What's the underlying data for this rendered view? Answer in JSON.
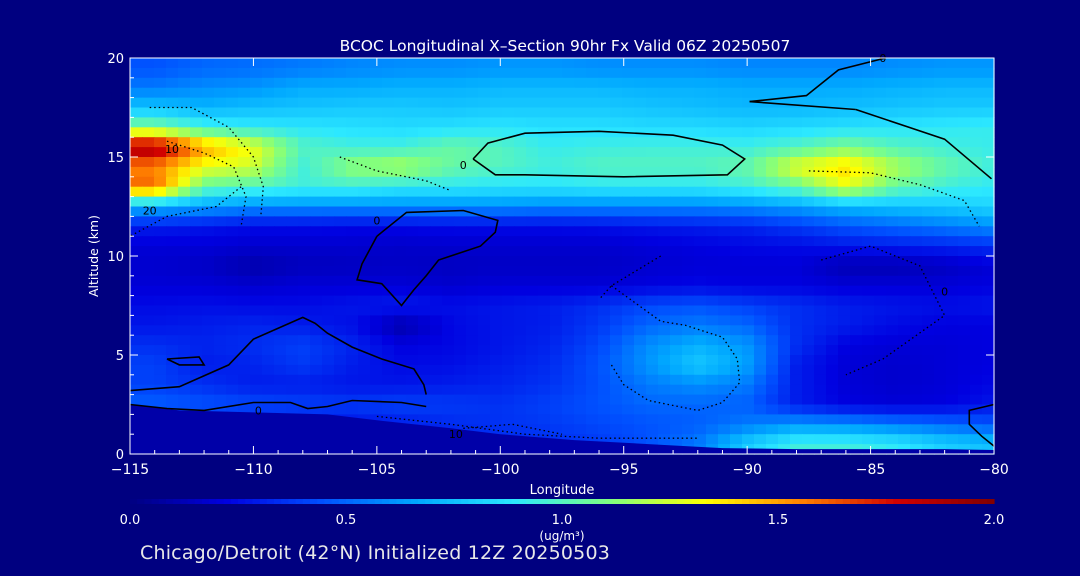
{
  "chart_data": {
    "type": "heatmap",
    "title": "BCOC Longitudinal X–Section 90hr  Fx Valid 06Z 20250507",
    "xlabel": "Longitude",
    "ylabel": "Altitude (km)",
    "xlim": [
      -115,
      -80
    ],
    "ylim": [
      0,
      20
    ],
    "x_ticks": [
      -115,
      -110,
      -105,
      -100,
      -95,
      -90,
      -85,
      -80
    ],
    "x_tick_labels": [
      "−115",
      "−110",
      "−105",
      "−100",
      "−95",
      "−90",
      "−85",
      "−80"
    ],
    "y_ticks": [
      0,
      5,
      10,
      15,
      20
    ],
    "y_tick_labels": [
      "0",
      "5",
      "10",
      "15",
      "20"
    ],
    "colorbar": {
      "min": 0.0,
      "max": 2.0,
      "tick_values": [
        0.0,
        0.5,
        1.0,
        1.5,
        2.0
      ],
      "tick_labels": [
        "0.0",
        "0.5",
        "1.0",
        "1.5",
        "2.0"
      ],
      "unit_label": "(ug/m³)"
    },
    "colormap": [
      "#000080",
      "#0000e0",
      "#0050ff",
      "#00a8ff",
      "#2ce8ff",
      "#80ff80",
      "#ffff00",
      "#ff8000",
      "#d00000",
      "#800000"
    ],
    "rows_altitude_km": [
      19.5,
      18.5,
      17.5,
      16.5,
      15.5,
      14.5,
      13.5,
      12.5,
      11.5,
      10.5,
      9.5,
      8.5,
      7.5,
      6.5,
      5.5,
      4.5,
      3.5,
      2.5,
      1.5,
      0.5
    ],
    "cols_longitude": [
      -114,
      -112,
      -110,
      -108,
      -106,
      -104,
      -102,
      -100,
      -98,
      -96,
      -94,
      -92,
      -90,
      -88,
      -86,
      -84,
      -82,
      -80
    ],
    "values": [
      [
        0.45,
        0.5,
        0.52,
        0.55,
        0.58,
        0.6,
        0.6,
        0.62,
        0.62,
        0.6,
        0.6,
        0.6,
        0.58,
        0.58,
        0.58,
        0.6,
        0.62,
        0.62
      ],
      [
        0.55,
        0.6,
        0.62,
        0.68,
        0.68,
        0.7,
        0.7,
        0.72,
        0.72,
        0.72,
        0.7,
        0.7,
        0.68,
        0.68,
        0.68,
        0.7,
        0.72,
        0.72
      ],
      [
        0.75,
        0.7,
        0.74,
        0.76,
        0.78,
        0.78,
        0.76,
        0.78,
        0.78,
        0.78,
        0.76,
        0.74,
        0.72,
        0.72,
        0.74,
        0.76,
        0.78,
        0.78
      ],
      [
        1.1,
        0.95,
        0.9,
        0.88,
        0.86,
        0.84,
        0.86,
        0.88,
        0.86,
        0.86,
        0.84,
        0.84,
        0.82,
        0.84,
        0.86,
        0.88,
        0.9,
        0.92
      ],
      [
        1.9,
        1.5,
        1.3,
        1.0,
        0.95,
        0.95,
        1.05,
        1.0,
        0.92,
        0.94,
        0.95,
        0.95,
        0.94,
        1.0,
        1.1,
        1.0,
        0.95,
        0.92
      ],
      [
        1.55,
        1.3,
        1.25,
        0.95,
        1.15,
        1.2,
        1.05,
        1.0,
        0.95,
        1.0,
        1.0,
        1.0,
        1.05,
        1.3,
        1.4,
        1.2,
        1.05,
        0.95
      ],
      [
        1.6,
        1.05,
        1.0,
        0.95,
        0.95,
        0.9,
        0.9,
        0.88,
        0.88,
        0.9,
        0.9,
        0.9,
        0.95,
        1.05,
        1.3,
        1.05,
        0.95,
        0.9
      ],
      [
        0.7,
        0.65,
        0.6,
        0.6,
        0.6,
        0.6,
        0.6,
        0.6,
        0.58,
        0.58,
        0.58,
        0.58,
        0.6,
        0.65,
        0.72,
        0.75,
        0.78,
        0.82
      ],
      [
        0.3,
        0.28,
        0.25,
        0.25,
        0.24,
        0.24,
        0.25,
        0.25,
        0.25,
        0.26,
        0.28,
        0.3,
        0.32,
        0.38,
        0.45,
        0.5,
        0.55,
        0.6
      ],
      [
        0.2,
        0.2,
        0.18,
        0.18,
        0.18,
        0.17,
        0.18,
        0.18,
        0.18,
        0.18,
        0.2,
        0.22,
        0.24,
        0.25,
        0.28,
        0.3,
        0.32,
        0.35
      ],
      [
        0.18,
        0.16,
        0.1,
        0.14,
        0.15,
        0.16,
        0.15,
        0.16,
        0.16,
        0.16,
        0.18,
        0.2,
        0.2,
        0.2,
        0.12,
        0.12,
        0.15,
        0.2
      ],
      [
        0.2,
        0.2,
        0.18,
        0.2,
        0.2,
        0.2,
        0.18,
        0.2,
        0.2,
        0.2,
        0.22,
        0.24,
        0.22,
        0.22,
        0.2,
        0.2,
        0.2,
        0.22
      ],
      [
        0.25,
        0.26,
        0.25,
        0.25,
        0.28,
        0.3,
        0.26,
        0.28,
        0.3,
        0.35,
        0.42,
        0.45,
        0.4,
        0.35,
        0.3,
        0.28,
        0.26,
        0.28
      ],
      [
        0.28,
        0.3,
        0.32,
        0.3,
        0.26,
        0.1,
        0.24,
        0.28,
        0.3,
        0.38,
        0.5,
        0.55,
        0.5,
        0.35,
        0.3,
        0.25,
        0.22,
        0.22
      ],
      [
        0.35,
        0.32,
        0.35,
        0.4,
        0.32,
        0.22,
        0.24,
        0.28,
        0.32,
        0.42,
        0.6,
        0.7,
        0.62,
        0.35,
        0.22,
        0.2,
        0.2,
        0.22
      ],
      [
        0.4,
        0.3,
        0.32,
        0.38,
        0.3,
        0.25,
        0.26,
        0.3,
        0.34,
        0.45,
        0.62,
        0.78,
        0.65,
        0.3,
        0.2,
        0.18,
        0.2,
        0.22
      ],
      [
        0.4,
        0.35,
        0.3,
        0.3,
        0.28,
        0.28,
        0.3,
        0.32,
        0.36,
        0.44,
        0.55,
        0.6,
        0.55,
        0.3,
        0.2,
        0.18,
        0.2,
        0.24
      ],
      [
        0.48,
        0.45,
        0.42,
        0.4,
        0.38,
        0.4,
        0.38,
        0.36,
        0.4,
        0.45,
        0.5,
        0.5,
        0.48,
        0.3,
        0.22,
        0.2,
        0.22,
        0.28
      ],
      [
        0.4,
        0.35,
        0.3,
        0.28,
        0.28,
        0.3,
        0.34,
        0.36,
        0.38,
        0.42,
        0.45,
        0.48,
        0.55,
        0.62,
        0.6,
        0.55,
        0.5,
        0.45
      ],
      [
        0.25,
        0.25,
        0.25,
        0.26,
        0.28,
        0.3,
        0.32,
        0.34,
        0.35,
        0.38,
        0.45,
        0.55,
        0.8,
        0.95,
        0.95,
        0.9,
        0.8,
        0.75
      ]
    ],
    "terrain_km": [
      [
        -115,
        2.5
      ],
      [
        -113,
        2.2
      ],
      [
        -110,
        2.1
      ],
      [
        -107,
        2.0
      ],
      [
        -105,
        1.7
      ],
      [
        -102,
        1.3
      ],
      [
        -100,
        1.0
      ],
      [
        -97,
        0.7
      ],
      [
        -94,
        0.5
      ],
      [
        -91,
        0.3
      ],
      [
        -88,
        0.25
      ],
      [
        -85,
        0.25
      ],
      [
        -82,
        0.25
      ],
      [
        -80,
        0.2
      ]
    ],
    "contour_labels": [
      {
        "text": "0",
        "lon": -101.5,
        "alt": 14.6
      },
      {
        "text": "0",
        "lon": -105,
        "alt": 11.8
      },
      {
        "text": "0",
        "lon": -109.8,
        "alt": 2.2
      },
      {
        "text": "0",
        "lon": -84.5,
        "alt": 20.0
      },
      {
        "text": "10",
        "lon": -113.3,
        "alt": 15.4
      },
      {
        "text": "20",
        "lon": -114.2,
        "alt": 12.3
      },
      {
        "text": "10",
        "lon": -101.8,
        "alt": 1.0
      },
      {
        "text": "0",
        "lon": -82,
        "alt": 8.2
      }
    ],
    "solid_contours": [
      [
        [
          -101.1,
          14.9
        ],
        [
          -100.5,
          15.7
        ],
        [
          -99,
          16.2
        ],
        [
          -96,
          16.3
        ],
        [
          -93,
          16.1
        ],
        [
          -91,
          15.6
        ],
        [
          -90.1,
          14.9
        ],
        [
          -90.8,
          14.1
        ],
        [
          -95,
          14.0
        ],
        [
          -99,
          14.1
        ],
        [
          -100.2,
          14.1
        ],
        [
          -101.1,
          14.9
        ]
      ],
      [
        [
          -105,
          11.0
        ],
        [
          -103.8,
          12.2
        ],
        [
          -101.5,
          12.3
        ],
        [
          -100.1,
          11.8
        ],
        [
          -100.2,
          11.2
        ],
        [
          -100.8,
          10.5
        ],
        [
          -102.5,
          9.8
        ],
        [
          -103,
          9.0
        ],
        [
          -103.5,
          8.3
        ],
        [
          -104,
          7.5
        ],
        [
          -104.8,
          8.6
        ],
        [
          -105.8,
          8.8
        ],
        [
          -105.6,
          9.6
        ],
        [
          -105,
          11.0
        ]
      ],
      [
        [
          -89.9,
          17.8
        ],
        [
          -87.6,
          18.1
        ],
        [
          -86.3,
          19.4
        ],
        [
          -84.4,
          20.0
        ]
      ],
      [
        [
          -85.6,
          17.4
        ],
        [
          -82,
          15.9
        ],
        [
          -80.1,
          13.9
        ]
      ],
      [
        [
          -89.9,
          17.8
        ],
        [
          -85.6,
          17.4
        ]
      ],
      [
        [
          -115,
          3.2
        ],
        [
          -113,
          3.4
        ],
        [
          -111,
          4.5
        ],
        [
          -110,
          5.8
        ],
        [
          -108,
          6.9
        ],
        [
          -107.5,
          6.6
        ],
        [
          -107,
          6.1
        ],
        [
          -106,
          5.4
        ],
        [
          -104.8,
          4.8
        ],
        [
          -103.5,
          4.3
        ],
        [
          -103.1,
          3.5
        ],
        [
          -103,
          3.0
        ]
      ],
      [
        [
          -113.5,
          4.8
        ],
        [
          -112.2,
          4.9
        ],
        [
          -112,
          4.5
        ],
        [
          -113,
          4.5
        ],
        [
          -113.5,
          4.8
        ]
      ],
      [
        [
          -115,
          2.5
        ],
        [
          -113.5,
          2.3
        ],
        [
          -112,
          2.2
        ],
        [
          -110,
          2.6
        ],
        [
          -108.5,
          2.6
        ],
        [
          -107.8,
          2.3
        ],
        [
          -107,
          2.4
        ],
        [
          -106,
          2.7
        ],
        [
          -104,
          2.6
        ],
        [
          -103,
          2.4
        ]
      ],
      [
        [
          -80,
          2.5
        ],
        [
          -81,
          2.2
        ],
        [
          -81,
          1.5
        ],
        [
          -80.5,
          0.9
        ],
        [
          -80,
          0.4
        ]
      ]
    ],
    "dotted_contours": [
      [
        [
          -114.2,
          17.5
        ],
        [
          -112.5,
          17.5
        ],
        [
          -111,
          16.5
        ],
        [
          -110,
          15.0
        ],
        [
          -109.6,
          13.5
        ],
        [
          -109.7,
          12.0
        ]
      ],
      [
        [
          -113.5,
          15.8
        ],
        [
          -112,
          15.2
        ],
        [
          -110.8,
          14.5
        ],
        [
          -110.3,
          13.0
        ],
        [
          -110.5,
          11.5
        ]
      ],
      [
        [
          -110.5,
          13.5
        ],
        [
          -111.5,
          12.5
        ],
        [
          -113.5,
          12.0
        ],
        [
          -115,
          11.0
        ]
      ],
      [
        [
          -106.5,
          15.0
        ],
        [
          -105,
          14.3
        ],
        [
          -103,
          13.8
        ],
        [
          -102,
          13.3
        ]
      ],
      [
        [
          -87.5,
          14.3
        ],
        [
          -85,
          14.2
        ],
        [
          -83,
          13.6
        ],
        [
          -81.2,
          12.8
        ],
        [
          -80.6,
          11.5
        ]
      ],
      [
        [
          -95.5,
          8.5
        ],
        [
          -93.5,
          6.7
        ],
        [
          -92.5,
          6.5
        ],
        [
          -91,
          5.9
        ],
        [
          -90.4,
          4.8
        ],
        [
          -90.3,
          3.6
        ],
        [
          -91,
          2.6
        ],
        [
          -92,
          2.2
        ],
        [
          -94,
          2.7
        ],
        [
          -95,
          3.5
        ],
        [
          -95.5,
          4.5
        ]
      ],
      [
        [
          -93.5,
          10.0
        ],
        [
          -95.5,
          8.5
        ],
        [
          -96,
          7.8
        ]
      ],
      [
        [
          -87,
          9.8
        ],
        [
          -85,
          10.5
        ],
        [
          -83,
          9.5
        ],
        [
          -82,
          7.0
        ],
        [
          -84.5,
          4.8
        ],
        [
          -86,
          4.0
        ]
      ],
      [
        [
          -105,
          1.9
        ],
        [
          -102,
          1.5
        ],
        [
          -99,
          1.0
        ],
        [
          -96,
          0.8
        ],
        [
          -92,
          0.8
        ]
      ],
      [
        [
          -101.5,
          1.3
        ],
        [
          -99.5,
          1.5
        ],
        [
          -97.5,
          1.0
        ]
      ]
    ]
  },
  "footer_text": "Chicago/Detroit (42°N) Initialized 12Z 20250503"
}
